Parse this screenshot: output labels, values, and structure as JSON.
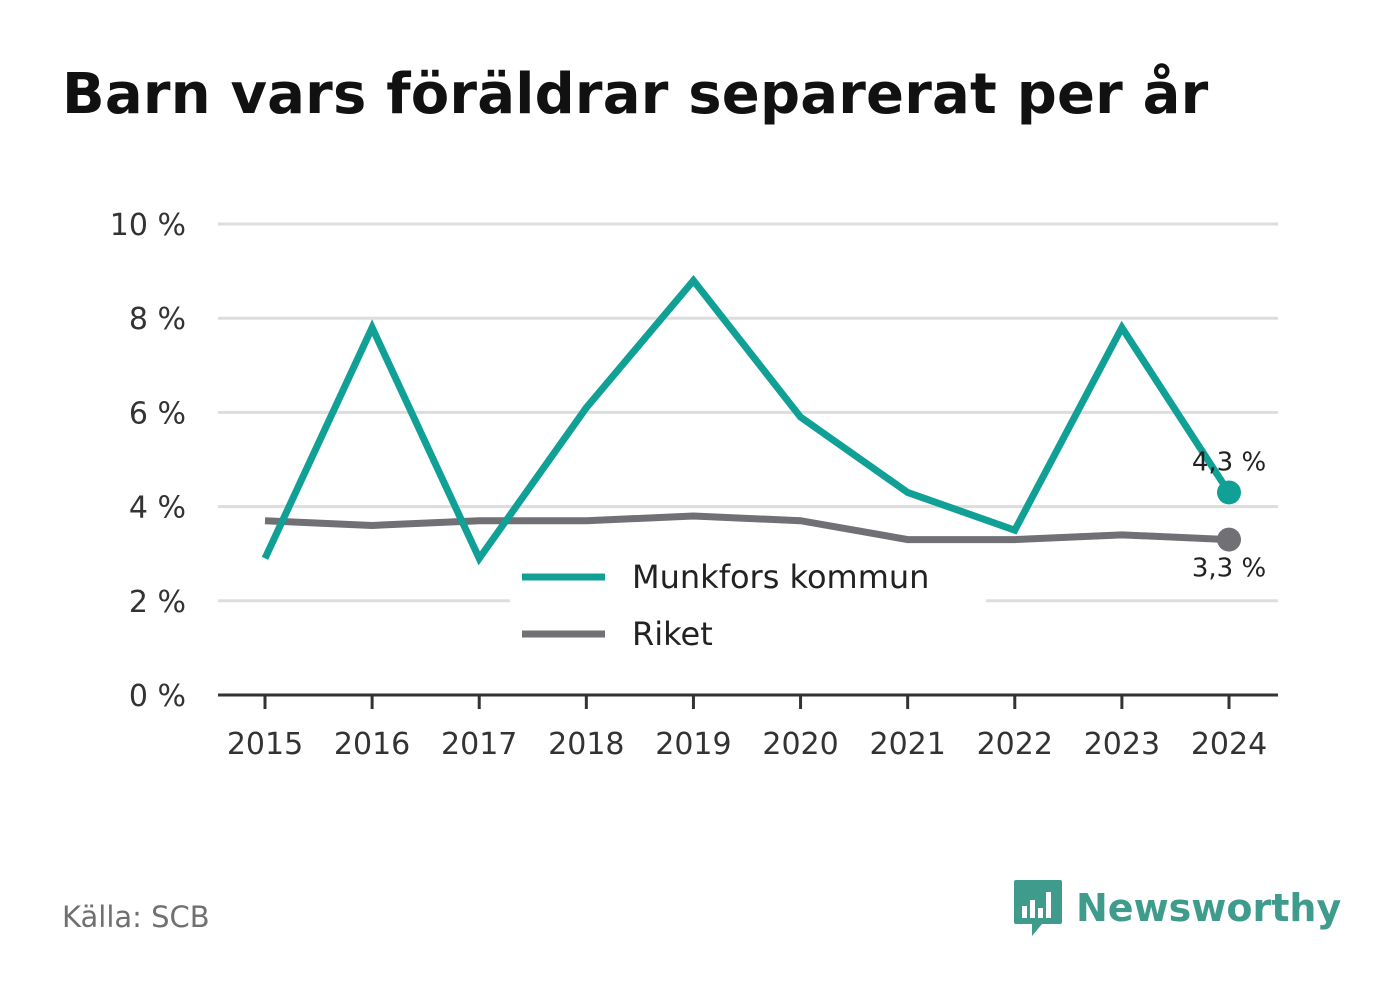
{
  "title": "Barn vars föräldrar separerat per år",
  "source": "Källa: SCB",
  "brand": {
    "name": "Newsworthy",
    "icon": "bar-chart-icon"
  },
  "colors": {
    "munkfors": "#10a095",
    "riket": "#707075",
    "grid": "#dddddd",
    "axis": "#333333",
    "brand": "#3f9c8c"
  },
  "chart_data": {
    "type": "line",
    "title": "Barn vars föräldrar separerat per år",
    "x": [
      "2015",
      "2016",
      "2017",
      "2018",
      "2019",
      "2020",
      "2021",
      "2022",
      "2023",
      "2024"
    ],
    "ylim": [
      0,
      10
    ],
    "yticks": [
      0,
      2,
      4,
      6,
      8,
      10
    ],
    "ytick_labels": [
      "0 %",
      "2 %",
      "4 %",
      "6 %",
      "8 %",
      "10 %"
    ],
    "grid": true,
    "legend_position": "center-bottom",
    "series": [
      {
        "name": "Munkfors kommun",
        "color": "#10a095",
        "values": [
          2.9,
          7.8,
          2.9,
          6.1,
          8.8,
          5.9,
          4.3,
          3.5,
          7.8,
          4.3
        ],
        "end_label": "4,3 %"
      },
      {
        "name": "Riket",
        "color": "#707075",
        "values": [
          3.7,
          3.6,
          3.7,
          3.7,
          3.8,
          3.7,
          3.3,
          3.3,
          3.4,
          3.3
        ],
        "end_label": "3,3 %"
      }
    ]
  }
}
